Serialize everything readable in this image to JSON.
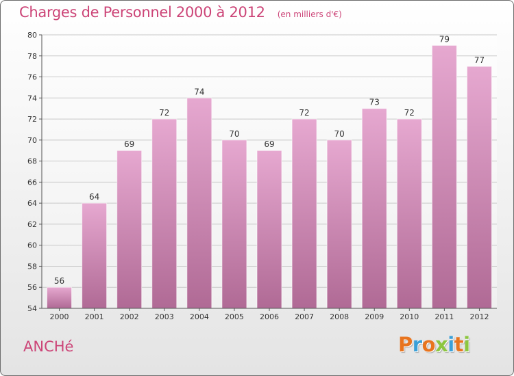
{
  "title": "Charges de Personnel 2000 à 2012",
  "unit_note": "(en milliers d'€)",
  "city": "ANCHé",
  "logo": {
    "text": "Proxiti",
    "letter_colors": [
      "#e8741e",
      "#3aa0d8",
      "#e8741e",
      "#8cc63f",
      "#3aa0d8",
      "#e8741e",
      "#8cc63f"
    ]
  },
  "colors": {
    "bar_top": "#e6a8d0",
    "bar_bottom": "#b06a95",
    "title": "#cc4477",
    "grid": "#c8c8c8"
  },
  "chart_data": {
    "type": "bar",
    "categories": [
      "2000",
      "2001",
      "2002",
      "2003",
      "2004",
      "2005",
      "2006",
      "2007",
      "2008",
      "2009",
      "2010",
      "2011",
      "2012"
    ],
    "values": [
      56,
      64,
      69,
      72,
      74,
      70,
      69,
      72,
      70,
      73,
      72,
      79,
      77
    ],
    "ylim": [
      54,
      80
    ],
    "yticks": [
      54,
      56,
      58,
      60,
      62,
      64,
      66,
      68,
      70,
      72,
      74,
      76,
      78,
      80
    ],
    "grid": true,
    "data_labels": true
  }
}
